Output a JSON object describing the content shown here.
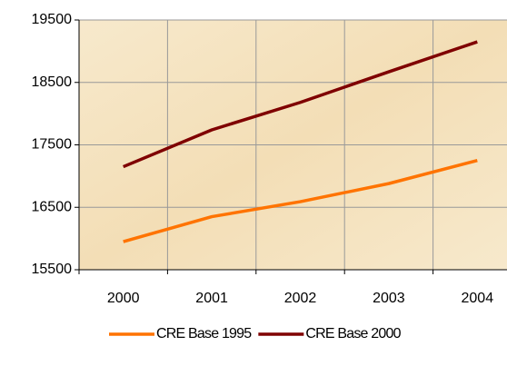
{
  "chart_data": {
    "type": "line",
    "categories": [
      "2000",
      "2001",
      "2002",
      "2003",
      "2004"
    ],
    "series": [
      {
        "name": "CRE Base 1995",
        "color": "#ff7300",
        "values": [
          15950,
          16350,
          16590,
          16880,
          17250
        ]
      },
      {
        "name": "CRE Base 2000",
        "color": "#7f0000",
        "values": [
          17150,
          17740,
          18180,
          18670,
          19150
        ]
      }
    ],
    "ylim": [
      15500,
      19500
    ],
    "yticks": [
      15500,
      16500,
      17500,
      18500,
      19500
    ],
    "grid": true,
    "legend": "bottom"
  }
}
